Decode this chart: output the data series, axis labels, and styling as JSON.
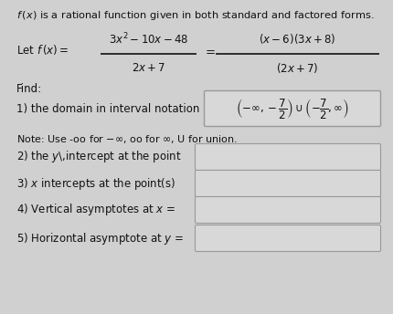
{
  "bg_color": "#d0d0d0",
  "content_bg": "#e8e8e8",
  "text_color": "#111111",
  "title_line": "$f\\,(x)$ is a rational function given in both standard and factored forms.",
  "find_label": "Find:",
  "item1_prefix": "1) the domain in interval notation",
  "note_line": "Note: Use -oo for $-\\infty$, oo for $\\infty$, U for union.",
  "item2": "2) the $y$\\,intercept at the point",
  "item3": "3) $x$ intercepts at the point(s)",
  "item4": "4) Vertical asymptotes at $x$ =",
  "item5": "5) Horizontal asymptote at $y$ =",
  "box_facecolor": "#d8d8d8",
  "box_edgecolor": "#999999",
  "font_size_main": 8.5,
  "font_size_title": 8.2,
  "font_size_note": 8.0
}
